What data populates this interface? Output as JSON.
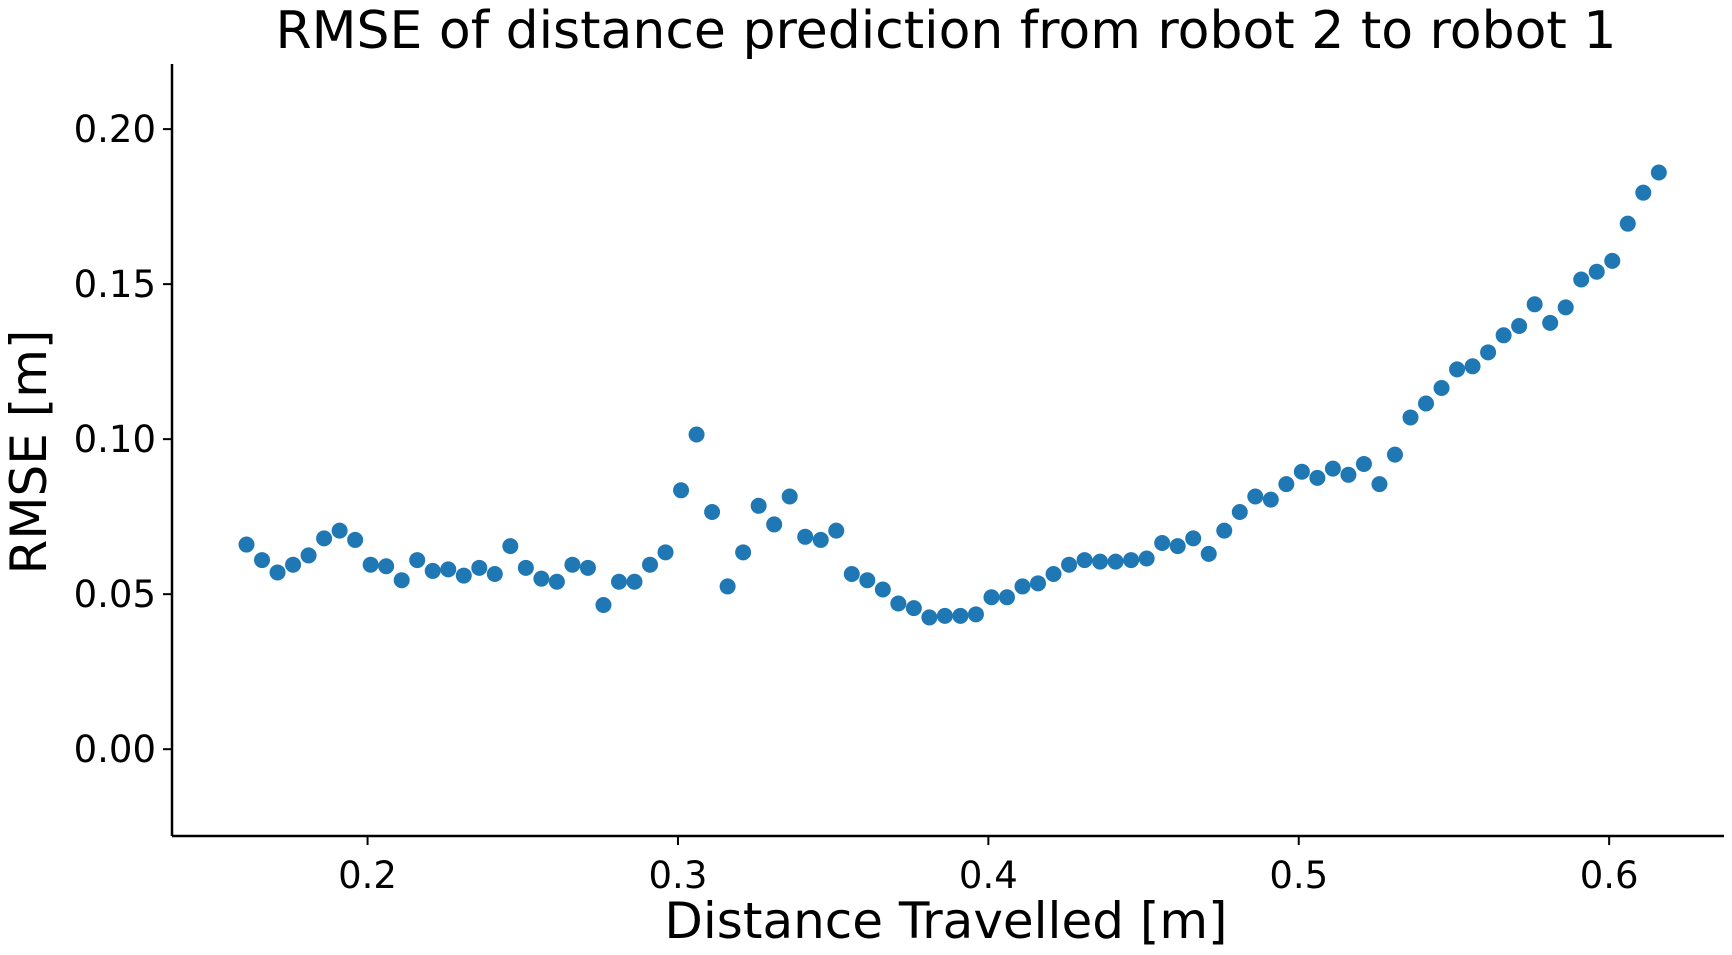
{
  "chart_data": {
    "type": "scatter",
    "title": "RMSE of distance prediction from robot 2 to robot 1",
    "xlabel": "Distance Travelled [m]",
    "ylabel": "RMSE [m]",
    "xlim": [
      0.137,
      0.637
    ],
    "ylim": [
      -0.028,
      0.221
    ],
    "xticks": [
      0.2,
      0.3,
      0.4,
      0.5,
      0.6
    ],
    "xtick_labels": [
      "0.2",
      "0.3",
      "0.4",
      "0.5",
      "0.6"
    ],
    "yticks": [
      0.0,
      0.05,
      0.1,
      0.15,
      0.2
    ],
    "ytick_labels": [
      "0.00",
      "0.05",
      "0.10",
      "0.15",
      "0.20"
    ],
    "grid": false,
    "marker_color": "#1f77b4",
    "series": [
      {
        "x": [
          0.161,
          0.166,
          0.171,
          0.176,
          0.181,
          0.186,
          0.191,
          0.196,
          0.201,
          0.206,
          0.211,
          0.216,
          0.221,
          0.226,
          0.231,
          0.236,
          0.241,
          0.246,
          0.251,
          0.256,
          0.261,
          0.266,
          0.271,
          0.276,
          0.281,
          0.286,
          0.291,
          0.296,
          0.301,
          0.306,
          0.311,
          0.316,
          0.321,
          0.326,
          0.331,
          0.336,
          0.341,
          0.346,
          0.351,
          0.356,
          0.361,
          0.366,
          0.371,
          0.376,
          0.381,
          0.386,
          0.391,
          0.396,
          0.401,
          0.406,
          0.411,
          0.416,
          0.421,
          0.426,
          0.431,
          0.436,
          0.441,
          0.446,
          0.451,
          0.456,
          0.461,
          0.466,
          0.471,
          0.476,
          0.481,
          0.486,
          0.491,
          0.496,
          0.501,
          0.506,
          0.511,
          0.516,
          0.521,
          0.526,
          0.531,
          0.536,
          0.541,
          0.546,
          0.551,
          0.556,
          0.561,
          0.566,
          0.571,
          0.576,
          0.581,
          0.586,
          0.591,
          0.596,
          0.601,
          0.606,
          0.611,
          0.616
        ],
        "y": [
          0.066,
          0.061,
          0.057,
          0.0595,
          0.0625,
          0.068,
          0.0705,
          0.0675,
          0.0595,
          0.059,
          0.0545,
          0.061,
          0.0575,
          0.058,
          0.056,
          0.0585,
          0.0565,
          0.0655,
          0.0585,
          0.055,
          0.054,
          0.0595,
          0.0585,
          0.0465,
          0.054,
          0.054,
          0.0595,
          0.0635,
          0.0835,
          0.1015,
          0.0765,
          0.0525,
          0.0635,
          0.0785,
          0.0725,
          0.0815,
          0.0685,
          0.0675,
          0.0705,
          0.0565,
          0.0545,
          0.0515,
          0.047,
          0.0455,
          0.0425,
          0.043,
          0.043,
          0.0435,
          0.049,
          0.049,
          0.0525,
          0.0535,
          0.0565,
          0.0595,
          0.061,
          0.0605,
          0.0605,
          0.061,
          0.0615,
          0.0665,
          0.0655,
          0.068,
          0.063,
          0.0705,
          0.0765,
          0.0815,
          0.0805,
          0.0855,
          0.0895,
          0.0875,
          0.0905,
          0.0885,
          0.092,
          0.0855,
          0.095,
          0.107,
          0.1115,
          0.1165,
          0.1225,
          0.1235,
          0.128,
          0.1335,
          0.1365,
          0.1435,
          0.1375,
          0.1425,
          0.1515,
          0.154,
          0.1575,
          0.1695,
          0.1795,
          0.186
        ]
      }
    ]
  }
}
